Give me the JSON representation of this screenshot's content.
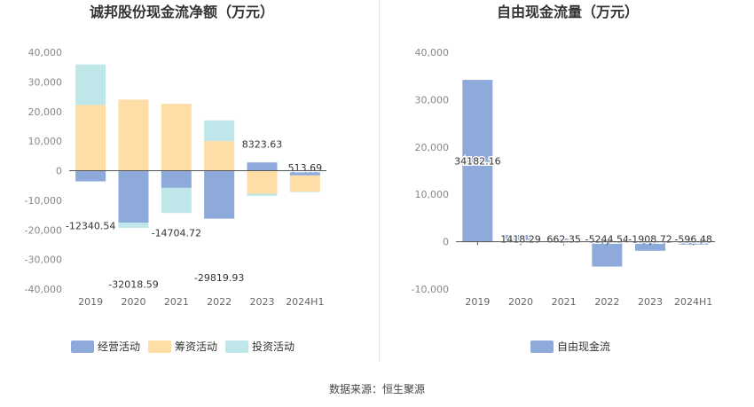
{
  "source_note": "数据来源：恒生聚源",
  "chart_data": [
    {
      "type": "bar",
      "stacked": true,
      "title": "诚邦股份现金流净额（万元）",
      "categories": [
        "2019",
        "2020",
        "2021",
        "2022",
        "2023",
        "2024H1"
      ],
      "ylim": [
        -40000,
        40000
      ],
      "yticks": [
        -40000,
        -30000,
        -20000,
        -10000,
        0,
        10000,
        20000,
        30000,
        40000
      ],
      "ytick_labels": [
        "-40,000",
        "-30,000",
        "-20,000",
        "-10,000",
        "0",
        "10,000",
        "20,000",
        "30,000",
        "40,000"
      ],
      "grid": false,
      "legend_position": "bottom",
      "series": [
        {
          "name": "经营活动",
          "color": "#8eaadb",
          "values": [
            -3600,
            -17600,
            -5800,
            -16200,
            2800,
            -1600
          ]
        },
        {
          "name": "筹资活动",
          "color": "#ffdda6",
          "values": [
            22200,
            24000,
            22600,
            10000,
            -7800,
            -5500
          ]
        },
        {
          "name": "投资活动",
          "color": "#bfe7ea",
          "values": [
            13700,
            -1700,
            -8500,
            7000,
            -700,
            -200
          ]
        }
      ],
      "data_labels": [
        "-12340.54",
        "-32018.59",
        "-14704.72",
        "-29819.93",
        "8323.63",
        "513.69"
      ],
      "data_label_values": [
        -12340.54,
        -32018.59,
        -14704.72,
        -29819.93,
        8323.63,
        513.69
      ]
    },
    {
      "type": "bar",
      "title": "自由现金流量（万元）",
      "categories": [
        "2019",
        "2020",
        "2021",
        "2022",
        "2023",
        "2024H1"
      ],
      "ylim": [
        -10000,
        40000
      ],
      "yticks": [
        -10000,
        0,
        10000,
        20000,
        30000,
        40000
      ],
      "ytick_labels": [
        "-10,000",
        "0",
        "10,000",
        "20,000",
        "30,000",
        "40,000"
      ],
      "grid": false,
      "legend_position": "bottom",
      "series": [
        {
          "name": "自由现金流",
          "color": "#8eaadb",
          "values": [
            34182.16,
            1418.29,
            662.35,
            -5244.54,
            -1908.72,
            -596.48
          ]
        }
      ],
      "data_labels": [
        "34182.16",
        "1418.29",
        "662.35",
        "-5244.54",
        "-1908.72",
        "-596.48"
      ]
    }
  ]
}
